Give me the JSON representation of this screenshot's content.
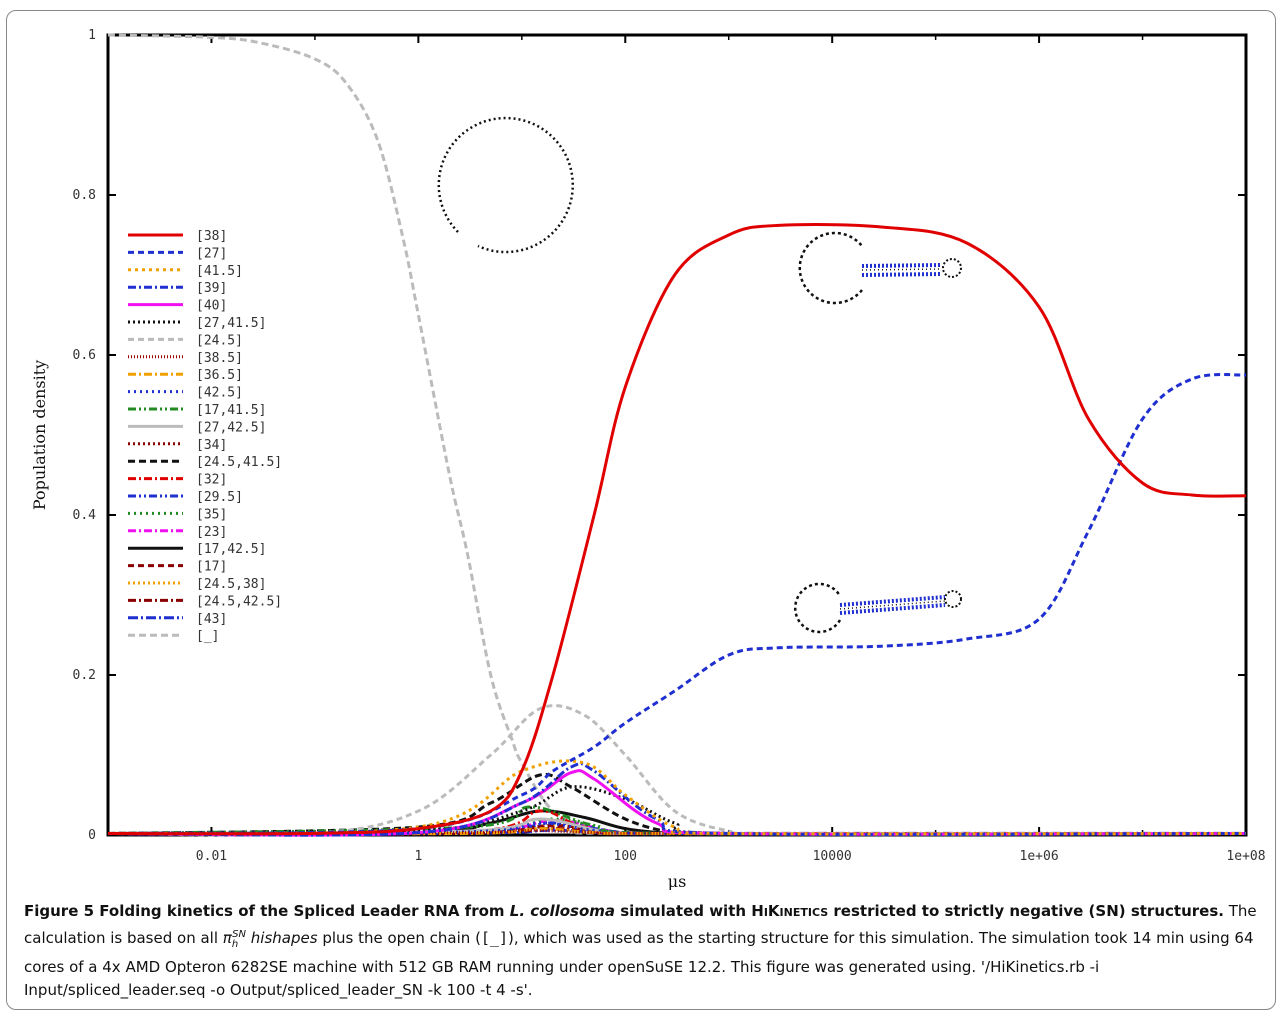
{
  "chart_data": {
    "type": "line",
    "xscale": "log",
    "xlabel": "μs",
    "ylabel": "Population density",
    "xlim": [
      0.001,
      100000000
    ],
    "ylim": [
      0,
      1
    ],
    "x_ticks": [
      "0.01",
      "1",
      "100",
      "10000",
      "1e+06",
      "1e+08"
    ],
    "y_ticks": [
      "0",
      "0.2",
      "0.4",
      "0.6",
      "0.8",
      "1"
    ],
    "legend_position": "left",
    "series": [
      {
        "name": "[38]",
        "color": "#e00000",
        "dash": "solid",
        "points": [
          [
            0.001,
            0
          ],
          [
            0.1,
            0.002
          ],
          [
            1,
            0.008
          ],
          [
            5,
            0.03
          ],
          [
            10,
            0.08
          ],
          [
            20,
            0.2
          ],
          [
            50,
            0.4
          ],
          [
            100,
            0.56
          ],
          [
            300,
            0.7
          ],
          [
            1000,
            0.75
          ],
          [
            3000,
            0.762
          ],
          [
            30000,
            0.76
          ],
          [
            200000,
            0.74
          ],
          [
            1000000,
            0.66
          ],
          [
            3000000,
            0.52
          ],
          [
            10000000,
            0.44
          ],
          [
            30000000,
            0.425
          ],
          [
            100000000,
            0.424
          ]
        ]
      },
      {
        "name": "[27]",
        "color": "#1f2fd0",
        "dash": "6,4",
        "points": [
          [
            0.001,
            0
          ],
          [
            1,
            0.008
          ],
          [
            10,
            0.05
          ],
          [
            20,
            0.08
          ],
          [
            50,
            0.11
          ],
          [
            100,
            0.14
          ],
          [
            300,
            0.18
          ],
          [
            1000,
            0.225
          ],
          [
            3000,
            0.234
          ],
          [
            30000,
            0.236
          ],
          [
            200000,
            0.245
          ],
          [
            1000000,
            0.27
          ],
          [
            3000000,
            0.38
          ],
          [
            10000000,
            0.52
          ],
          [
            30000000,
            0.57
          ],
          [
            100000000,
            0.575
          ]
        ]
      },
      {
        "name": "[41.5]",
        "color": "#f0a000",
        "dash": "3,4",
        "points": [
          [
            0.001,
            0
          ],
          [
            1,
            0.01
          ],
          [
            10,
            0.08
          ],
          [
            40,
            0.09
          ],
          [
            100,
            0.05
          ],
          [
            300,
            0.01
          ],
          [
            1000,
            0
          ],
          [
            100000000,
            0
          ]
        ]
      },
      {
        "name": "[39]",
        "color": "#1f2fd0",
        "dash": "8,3,2,3",
        "points": [
          [
            0.001,
            0
          ],
          [
            1,
            0.003
          ],
          [
            10,
            0.04
          ],
          [
            30,
            0.085
          ],
          [
            50,
            0.08
          ],
          [
            200,
            0.02
          ],
          [
            1000,
            0
          ],
          [
            100000000,
            0
          ]
        ]
      },
      {
        "name": "[40]",
        "color": "#f010f0",
        "dash": "solid",
        "points": [
          [
            0.001,
            0
          ],
          [
            1,
            0.003
          ],
          [
            10,
            0.04
          ],
          [
            30,
            0.078
          ],
          [
            50,
            0.07
          ],
          [
            200,
            0.015
          ],
          [
            1000,
            0
          ],
          [
            100000000,
            0
          ]
        ]
      },
      {
        "name": "[27,41.5]",
        "color": "#111111",
        "dash": "2,3",
        "points": [
          [
            0.001,
            0
          ],
          [
            1,
            0.005
          ],
          [
            10,
            0.03
          ],
          [
            30,
            0.06
          ],
          [
            100,
            0.045
          ],
          [
            300,
            0.015
          ],
          [
            1000,
            0.002
          ],
          [
            100000000,
            0
          ]
        ]
      },
      {
        "name": "[24.5]",
        "color": "#bbbbbb",
        "dash": "6,4",
        "points": [
          [
            0.001,
            0
          ],
          [
            0.1,
            0.002
          ],
          [
            1,
            0.03
          ],
          [
            5,
            0.1
          ],
          [
            15,
            0.158
          ],
          [
            40,
            0.15
          ],
          [
            100,
            0.1
          ],
          [
            300,
            0.03
          ],
          [
            1000,
            0.005
          ],
          [
            3000,
            0
          ],
          [
            100000000,
            0
          ]
        ]
      },
      {
        "name": "[38.5]",
        "color": "#a00000",
        "dash": "1,2",
        "points": [
          [
            0.001,
            0
          ],
          [
            3,
            0.003
          ],
          [
            10,
            0.006
          ],
          [
            50,
            0.003
          ],
          [
            300,
            0
          ],
          [
            100000000,
            0
          ]
        ]
      },
      {
        "name": "[36.5]",
        "color": "#f0a000",
        "dash": "8,3,2,3",
        "points": [
          [
            0.001,
            0
          ],
          [
            3,
            0.002
          ],
          [
            15,
            0.008
          ],
          [
            50,
            0.003
          ],
          [
            300,
            0
          ],
          [
            100000000,
            0
          ]
        ]
      },
      {
        "name": "[42.5]",
        "color": "#1f2fd0",
        "dash": "2,4",
        "points": [
          [
            0.001,
            0
          ],
          [
            3,
            0.004
          ],
          [
            15,
            0.015
          ],
          [
            50,
            0.006
          ],
          [
            300,
            0
          ],
          [
            100000000,
            0
          ]
        ]
      },
      {
        "name": "[17,41.5]",
        "color": "#228b22",
        "dash": "8,3,2,3,2,3",
        "points": [
          [
            0.001,
            0
          ],
          [
            3,
            0.01
          ],
          [
            12,
            0.035
          ],
          [
            50,
            0.012
          ],
          [
            300,
            0
          ],
          [
            100000000,
            0
          ]
        ]
      },
      {
        "name": "[27,42.5]",
        "color": "#bbbbbb",
        "dash": "solid",
        "points": [
          [
            0.001,
            0
          ],
          [
            3,
            0.005
          ],
          [
            15,
            0.02
          ],
          [
            60,
            0.005
          ],
          [
            300,
            0
          ],
          [
            100000000,
            0
          ]
        ]
      },
      {
        "name": "[34]",
        "color": "#8b0000",
        "dash": "2,3",
        "points": [
          [
            0.001,
            0
          ],
          [
            3,
            0.002
          ],
          [
            15,
            0.01
          ],
          [
            60,
            0.002
          ],
          [
            300,
            0
          ],
          [
            100000000,
            0
          ]
        ]
      },
      {
        "name": "[24.5,41.5]",
        "color": "#111111",
        "dash": "7,4",
        "points": [
          [
            0.001,
            0
          ],
          [
            1,
            0.01
          ],
          [
            5,
            0.04
          ],
          [
            15,
            0.075
          ],
          [
            30,
            0.06
          ],
          [
            100,
            0.02
          ],
          [
            300,
            0.003
          ],
          [
            1000,
            0
          ],
          [
            100000000,
            0
          ]
        ]
      },
      {
        "name": "[32]",
        "color": "#e00000",
        "dash": "8,3,2,3",
        "points": [
          [
            0.001,
            0
          ],
          [
            3,
            0.004
          ],
          [
            15,
            0.03
          ],
          [
            40,
            0.01
          ],
          [
            300,
            0
          ],
          [
            100000000,
            0
          ]
        ]
      },
      {
        "name": "[29.5]",
        "color": "#1f2fd0",
        "dash": "8,3,2,3,2,3",
        "points": [
          [
            0.001,
            0
          ],
          [
            3,
            0.003
          ],
          [
            20,
            0.015
          ],
          [
            80,
            0.004
          ],
          [
            300,
            0
          ],
          [
            100000000,
            0
          ]
        ]
      },
      {
        "name": "[35]",
        "color": "#228b22",
        "dash": "2,4",
        "points": [
          [
            0.001,
            0
          ],
          [
            3,
            0.004
          ],
          [
            20,
            0.02
          ],
          [
            80,
            0.004
          ],
          [
            300,
            0
          ],
          [
            100000000,
            0
          ]
        ]
      },
      {
        "name": "[23]",
        "color": "#f010f0",
        "dash": "8,3,2,3",
        "points": [
          [
            0.001,
            0
          ],
          [
            3,
            0.004
          ],
          [
            20,
            0.018
          ],
          [
            80,
            0.004
          ],
          [
            300,
            0
          ],
          [
            100000000,
            0
          ]
        ]
      },
      {
        "name": "[17,42.5]",
        "color": "#111111",
        "dash": "solid",
        "points": [
          [
            0.001,
            0
          ],
          [
            1,
            0.003
          ],
          [
            5,
            0.015
          ],
          [
            15,
            0.03
          ],
          [
            40,
            0.022
          ],
          [
            100,
            0.008
          ],
          [
            300,
            0.001
          ],
          [
            1000,
            0
          ],
          [
            100000000,
            0
          ]
        ]
      },
      {
        "name": "[17]",
        "color": "#8b0000",
        "dash": "6,4",
        "points": [
          [
            0.001,
            0
          ],
          [
            3,
            0.003
          ],
          [
            20,
            0.012
          ],
          [
            80,
            0.003
          ],
          [
            300,
            0
          ],
          [
            100000000,
            0
          ]
        ]
      },
      {
        "name": "[24.5,38]",
        "color": "#f0a000",
        "dash": "2,3",
        "points": [
          [
            0.001,
            0
          ],
          [
            3,
            0.003
          ],
          [
            20,
            0.012
          ],
          [
            80,
            0.003
          ],
          [
            300,
            0
          ],
          [
            100000000,
            0
          ]
        ]
      },
      {
        "name": "[24.5,42.5]",
        "color": "#8b0000",
        "dash": "8,3,2,3",
        "points": [
          [
            0.001,
            0
          ],
          [
            3,
            0.002
          ],
          [
            20,
            0.008
          ],
          [
            80,
            0.002
          ],
          [
            300,
            0
          ],
          [
            100000000,
            0
          ]
        ]
      },
      {
        "name": "[43]",
        "color": "#1f2fd0",
        "dash": "10,3,2,3",
        "points": [
          [
            0.001,
            0
          ],
          [
            3,
            0.002
          ],
          [
            20,
            0.006
          ],
          [
            80,
            0.002
          ],
          [
            300,
            0
          ],
          [
            1000,
            0.002
          ],
          [
            100000000,
            0.002
          ]
        ]
      },
      {
        "name": "[_]",
        "color": "#bbbbbb",
        "dash": "7,4",
        "points": [
          [
            0.001,
            1
          ],
          [
            0.01,
            0.997
          ],
          [
            0.03,
            0.99
          ],
          [
            0.1,
            0.97
          ],
          [
            0.2,
            0.94
          ],
          [
            0.4,
            0.87
          ],
          [
            0.7,
            0.75
          ],
          [
            1,
            0.65
          ],
          [
            2,
            0.45
          ],
          [
            3,
            0.35
          ],
          [
            5,
            0.2
          ],
          [
            8,
            0.12
          ],
          [
            10,
            0.09
          ],
          [
            20,
            0.03
          ],
          [
            50,
            0.008
          ],
          [
            100,
            0
          ],
          [
            100000000,
            0
          ]
        ]
      }
    ]
  },
  "caption": {
    "figure_label": "Figure 5",
    "title_part1": "Folding kinetics of the Spliced Leader RNA from",
    "title_species": "L. collosoma",
    "title_part2": "simulated with",
    "title_tool": "HiKinetics",
    "title_part3": "restricted to strictly negative (SN) structures.",
    "text_1": "The calculation is based on all",
    "math_pi": "π",
    "math_sub": "h",
    "math_sup": "SN",
    "text_hishapes": "hishapes",
    "text_2": "plus the open chain (",
    "open_chain": "[_]",
    "text_3": "), which was used as the starting structure for this simulation. The simulation took 14 min using 64 cores of a 4x AMD Opteron 6282SE machine with 512 GB RAM running under openSuSE 12.2. This figure was generated using. '/HiKinetics.rb -i Input/spliced_leader.seq -o Output/spliced_leader_SN -k 100 -t 4 -s'."
  }
}
